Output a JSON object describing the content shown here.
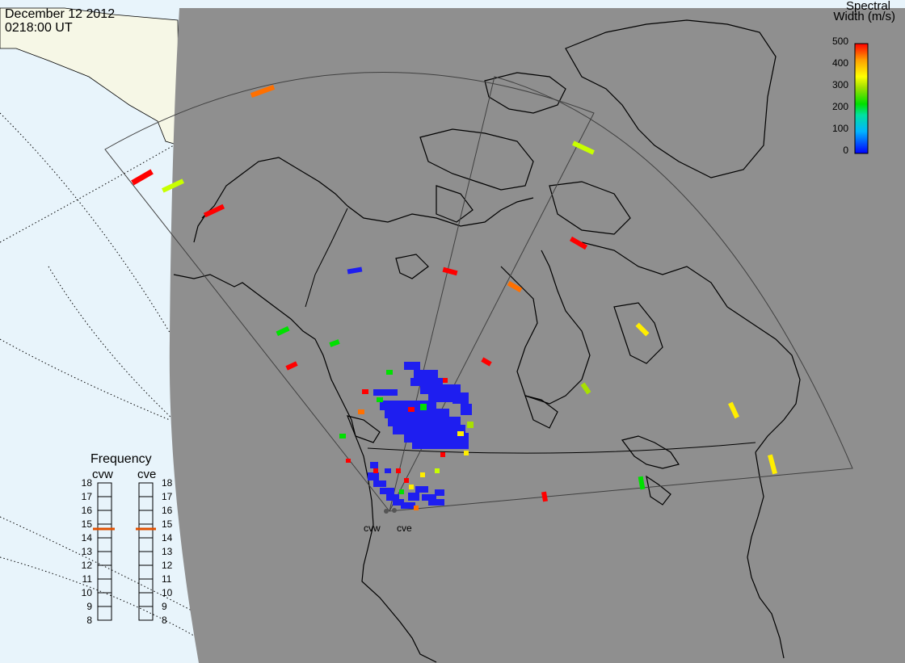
{
  "header": {
    "date": "December 12 2012",
    "time": "0218:00 UT"
  },
  "colorbar": {
    "title_line1": "Spectral",
    "title_line2": "Width (m/s)",
    "ticks": [
      "500",
      "400",
      "300",
      "200",
      "100",
      "0"
    ],
    "range": [
      0,
      500
    ],
    "colors": [
      "#0000ff",
      "#00b4ff",
      "#00e0a0",
      "#00e000",
      "#a0e000",
      "#ffff00",
      "#ffa000",
      "#ff0000"
    ]
  },
  "frequency": {
    "title": "Frequency",
    "columns": [
      {
        "label": "cvw",
        "value_mhz": 15
      },
      {
        "label": "cve",
        "value_mhz": 15
      }
    ],
    "ticks": [
      "18",
      "17",
      "16",
      "15",
      "14",
      "13",
      "12",
      "11",
      "10",
      "9",
      "8"
    ],
    "range": [
      8,
      18
    ],
    "marker_color": "#e05000"
  },
  "sites": [
    {
      "label": "cvw"
    },
    {
      "label": "cve"
    }
  ],
  "colors": {
    "night": "#8f8f8f",
    "ocean_day": "#e8f4fb",
    "land_day": "#f5f6e6",
    "coast": "#000000",
    "grid": "#404040"
  }
}
